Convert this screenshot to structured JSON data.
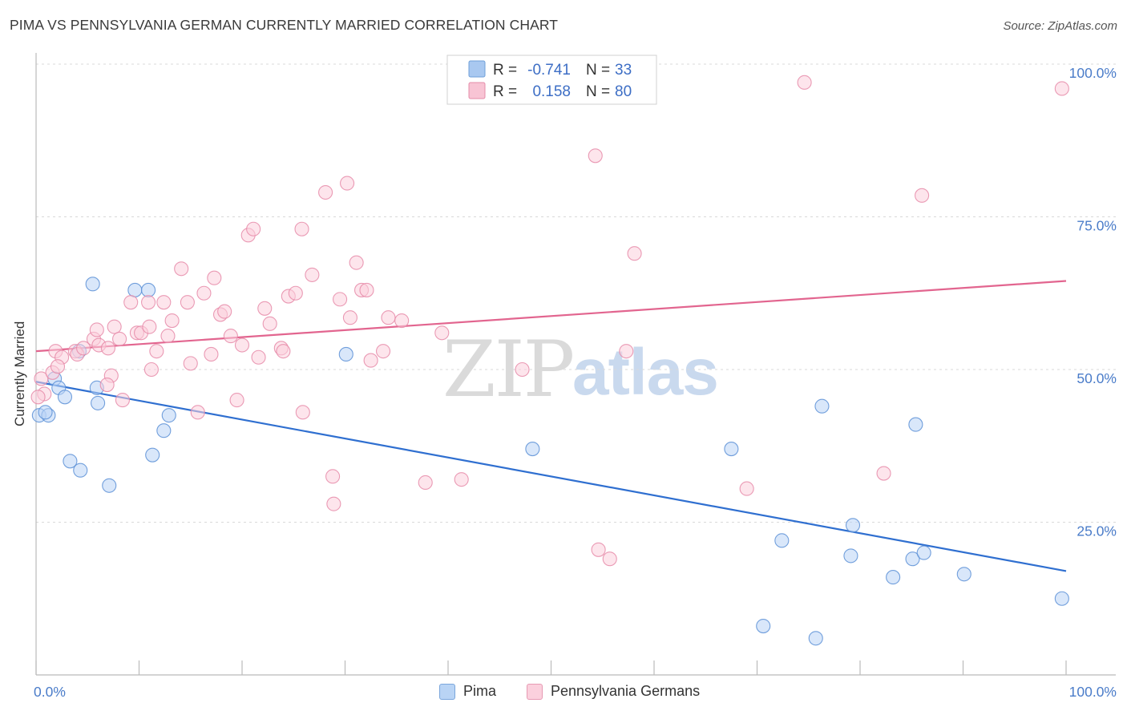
{
  "header": {
    "title": "PIMA VS PENNSYLVANIA GERMAN CURRENTLY MARRIED CORRELATION CHART",
    "source": "Source: ZipAtlas.com"
  },
  "watermark": {
    "zip": "ZIP",
    "atlas": "atlas"
  },
  "legend_top": {
    "rows": [
      {
        "r_label": "R =",
        "r_value": "-0.741",
        "n_label": "N =",
        "n_value": "33",
        "color": "#a9c8f0",
        "stroke": "#6f9fd8"
      },
      {
        "r_label": "R =",
        "r_value": "0.158",
        "n_label": "N =",
        "n_value": "80",
        "color": "#f8c4d4",
        "stroke": "#e58ca9"
      }
    ]
  },
  "legend_bottom": {
    "items": [
      {
        "label": "Pima",
        "color": "#b9d4f5",
        "stroke": "#7aa6dc"
      },
      {
        "label": "Pennsylvania Germans",
        "color": "#fbd0dd",
        "stroke": "#e79ab3"
      }
    ]
  },
  "chart_data": {
    "type": "scatter",
    "title": "PIMA VS PENNSYLVANIA GERMAN CURRENTLY MARRIED CORRELATION CHART",
    "xlabel": "",
    "ylabel": "Currently Married",
    "xlim": [
      0,
      100
    ],
    "ylim": [
      0,
      100
    ],
    "x_tick_labels": [
      "0.0%",
      "100.0%"
    ],
    "y_tick_labels": [
      "25.0%",
      "50.0%",
      "75.0%",
      "100.0%"
    ],
    "y_ticks": [
      25,
      50,
      75,
      100
    ],
    "grid": true,
    "legend_position": "top-center",
    "series": [
      {
        "name": "Pima",
        "color": "#5b8fd6",
        "fill": "#b9d4f5",
        "line_color": "#2f6fd0",
        "trend": {
          "x": [
            0,
            100
          ],
          "y": [
            48,
            17
          ]
        },
        "points": [
          [
            0.3,
            42.5
          ],
          [
            1.2,
            42.5
          ],
          [
            1.8,
            48.5
          ],
          [
            2.2,
            47
          ],
          [
            2.8,
            45.5
          ],
          [
            3.3,
            35
          ],
          [
            4.3,
            33.5
          ],
          [
            5.5,
            64
          ],
          [
            6.0,
            44.5
          ],
          [
            5.9,
            47
          ],
          [
            7.1,
            31
          ],
          [
            9.6,
            63
          ],
          [
            10.9,
            63
          ],
          [
            11.3,
            36
          ],
          [
            12.4,
            40
          ],
          [
            12.9,
            42.5
          ],
          [
            4.2,
            53
          ],
          [
            30.1,
            52.5
          ],
          [
            48.2,
            37
          ],
          [
            67.5,
            37
          ],
          [
            70.6,
            8
          ],
          [
            72.4,
            22
          ],
          [
            75.7,
            6
          ],
          [
            76.3,
            44
          ],
          [
            79.1,
            19.5
          ],
          [
            79.3,
            24.5
          ],
          [
            83.2,
            16
          ],
          [
            85.1,
            19
          ],
          [
            85.4,
            41
          ],
          [
            86.2,
            20
          ],
          [
            90.1,
            16.5
          ],
          [
            99.6,
            12.5
          ],
          [
            0.9,
            43
          ]
        ]
      },
      {
        "name": "Pennsylvania Germans",
        "color": "#e68aa8",
        "fill": "#fbd0dd",
        "line_color": "#e2658f",
        "trend": {
          "x": [
            0,
            100
          ],
          "y": [
            53,
            64.5
          ]
        },
        "points": [
          [
            0.5,
            48.5
          ],
          [
            0.8,
            46
          ],
          [
            1.6,
            49.5
          ],
          [
            1.9,
            53
          ],
          [
            2.5,
            52
          ],
          [
            3.8,
            53
          ],
          [
            4.0,
            52.5
          ],
          [
            4.6,
            53.5
          ],
          [
            5.6,
            55
          ],
          [
            5.9,
            56.5
          ],
          [
            6.1,
            54
          ],
          [
            7.0,
            53.5
          ],
          [
            7.3,
            49
          ],
          [
            7.6,
            57
          ],
          [
            8.1,
            55
          ],
          [
            8.4,
            45
          ],
          [
            9.2,
            61
          ],
          [
            9.8,
            56
          ],
          [
            10.2,
            56
          ],
          [
            10.9,
            61
          ],
          [
            11.2,
            50
          ],
          [
            11.7,
            53
          ],
          [
            12.4,
            61
          ],
          [
            12.8,
            55.5
          ],
          [
            13.2,
            58
          ],
          [
            14.1,
            66.5
          ],
          [
            14.7,
            61
          ],
          [
            15.0,
            51
          ],
          [
            15.7,
            43
          ],
          [
            16.3,
            62.5
          ],
          [
            17.0,
            52.5
          ],
          [
            17.3,
            65
          ],
          [
            17.9,
            59
          ],
          [
            18.3,
            59.5
          ],
          [
            18.9,
            55.5
          ],
          [
            19.5,
            45
          ],
          [
            20.0,
            54
          ],
          [
            20.6,
            72
          ],
          [
            21.1,
            73
          ],
          [
            21.6,
            52
          ],
          [
            22.2,
            60
          ],
          [
            22.7,
            57.5
          ],
          [
            23.8,
            53.5
          ],
          [
            24.0,
            53
          ],
          [
            24.5,
            62
          ],
          [
            25.2,
            62.5
          ],
          [
            25.8,
            73
          ],
          [
            25.9,
            43
          ],
          [
            26.8,
            65.5
          ],
          [
            28.1,
            79
          ],
          [
            28.8,
            32.5
          ],
          [
            28.9,
            28
          ],
          [
            29.5,
            61.5
          ],
          [
            30.2,
            80.5
          ],
          [
            30.5,
            58.5
          ],
          [
            31.1,
            67.5
          ],
          [
            31.6,
            63
          ],
          [
            32.1,
            63
          ],
          [
            32.5,
            51.5
          ],
          [
            33.7,
            53
          ],
          [
            34.2,
            58.5
          ],
          [
            35.5,
            58
          ],
          [
            37.8,
            31.5
          ],
          [
            39.4,
            56
          ],
          [
            41.3,
            32
          ],
          [
            47.2,
            50
          ],
          [
            54.3,
            85
          ],
          [
            54.6,
            20.5
          ],
          [
            55.7,
            19
          ],
          [
            57.3,
            53
          ],
          [
            58.1,
            69
          ],
          [
            69.0,
            30.5
          ],
          [
            74.6,
            97
          ],
          [
            82.3,
            33
          ],
          [
            86.0,
            78.5
          ],
          [
            99.6,
            96
          ],
          [
            2.1,
            50.5
          ],
          [
            6.9,
            47.5
          ],
          [
            11.0,
            57
          ],
          [
            0.2,
            45.5
          ]
        ]
      }
    ]
  }
}
